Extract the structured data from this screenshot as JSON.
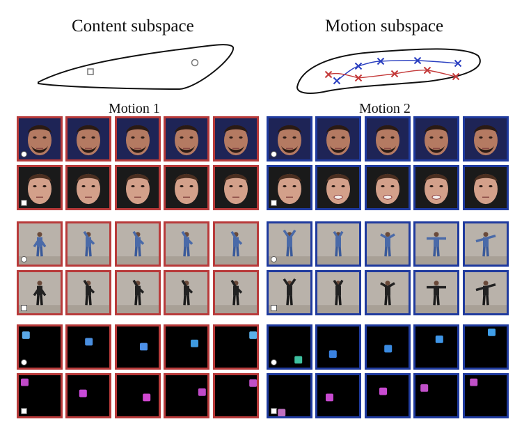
{
  "header": {
    "content_title": "Content subspace",
    "motion_title": "Motion subspace"
  },
  "panels": {
    "left_label": "Motion 1",
    "right_label": "Motion 2"
  },
  "colors": {
    "motion1": "#b83a3a",
    "motion2": "#1f3a9e",
    "trajectory_blue": "#2a3fc0",
    "trajectory_red": "#c43a3a",
    "outline": "#111111",
    "marker_gray": "#777777"
  },
  "content_markers": [
    "square",
    "circle"
  ],
  "datasets": [
    {
      "name": "faces",
      "rows": [
        {
          "subject": "man",
          "content_marker": "circle"
        },
        {
          "subject": "woman",
          "content_marker": "square"
        }
      ]
    },
    {
      "name": "human-actions",
      "rows": [
        {
          "subject": "person-blue",
          "content_marker": "circle"
        },
        {
          "subject": "person-dark",
          "content_marker": "square"
        }
      ]
    },
    {
      "name": "moving-shapes",
      "rows": [
        {
          "subject": "cyan-square",
          "content_marker": "circle"
        },
        {
          "subject": "magenta-square",
          "content_marker": "square"
        }
      ]
    }
  ],
  "frames_per_row": 5
}
